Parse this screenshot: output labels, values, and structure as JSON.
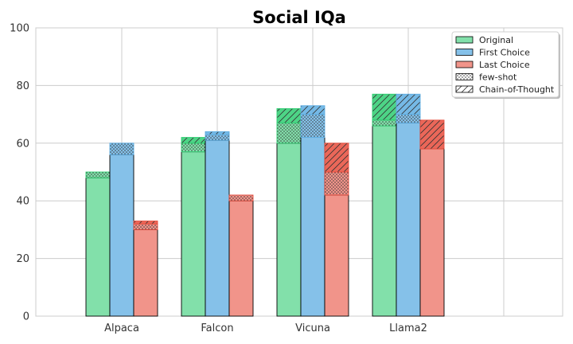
{
  "chart_data": {
    "type": "bar",
    "title": "Social IQa",
    "xlabel": "",
    "ylabel": "",
    "ylim": [
      0,
      100
    ],
    "yticks": [
      0,
      20,
      40,
      60,
      80,
      100
    ],
    "grid": true,
    "legend_position": "top-right",
    "categories": [
      "Alpaca",
      "Falcon",
      "Vicuna",
      "Llama2"
    ],
    "series": [
      {
        "name": "Original",
        "color": "#82e0aa",
        "dark": "#2ecc71",
        "base": [
          48,
          57,
          60,
          66
        ],
        "few_shot": [
          50,
          60,
          67,
          68
        ],
        "cot": [
          50,
          62,
          72,
          77
        ]
      },
      {
        "name": "First Choice",
        "color": "#85c1e9",
        "dark": "#5dade2",
        "base": [
          56,
          61,
          62,
          67
        ],
        "few_shot": [
          60,
          63,
          70,
          70
        ],
        "cot": [
          60,
          64,
          73,
          77
        ]
      },
      {
        "name": "Last Choice",
        "color": "#f1948a",
        "dark": "#e74c3c",
        "base": [
          30,
          40,
          42,
          58
        ],
        "few_shot": [
          32,
          42,
          50,
          58
        ],
        "cot": [
          33,
          42,
          60,
          68
        ]
      }
    ],
    "legend": [
      {
        "label": "Original",
        "style": "solid",
        "color": "#82e0aa"
      },
      {
        "label": "First Choice",
        "style": "solid",
        "color": "#85c1e9"
      },
      {
        "label": "Last Choice",
        "style": "solid",
        "color": "#f1948a"
      },
      {
        "label": "few-shot",
        "style": "dots",
        "color": "#ffffff"
      },
      {
        "label": "Chain-of-Thought",
        "style": "hatch",
        "color": "#ffffff"
      }
    ]
  }
}
